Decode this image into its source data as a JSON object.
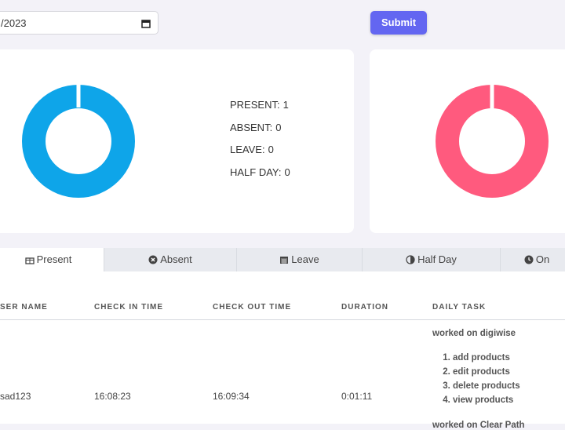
{
  "filter": {
    "date": "/2023",
    "submit": "Submit"
  },
  "summary": {
    "stats": [
      {
        "label": "PRESENT:",
        "value": 1,
        "color": "#0ea5e9"
      },
      {
        "label": "ABSENT:",
        "value": 0,
        "color": "#ff5a7e"
      },
      {
        "label": "LEAVE:",
        "value": 0,
        "color": "#f59e0b"
      },
      {
        "label": "HALF DAY:",
        "value": 0,
        "color": "#10b981"
      }
    ]
  },
  "tabs": [
    "Present",
    "Absent",
    "Leave",
    "Half Day",
    "On"
  ],
  "table": {
    "headers": [
      "SER NAME",
      "CHECK IN TIME",
      "CHECK OUT TIME",
      "DURATION",
      "DAILY TASK"
    ],
    "rows": [
      {
        "user": "sad123",
        "check_in": "16:08:23",
        "check_out": "16:09:34",
        "duration": "0:01:11",
        "tasks": [
          {
            "title": "worked on digiwise",
            "items": [
              "add products",
              "edit products",
              "delete products",
              "view products"
            ]
          },
          {
            "title": "worked on Clear Path",
            "items": []
          }
        ]
      }
    ]
  }
}
